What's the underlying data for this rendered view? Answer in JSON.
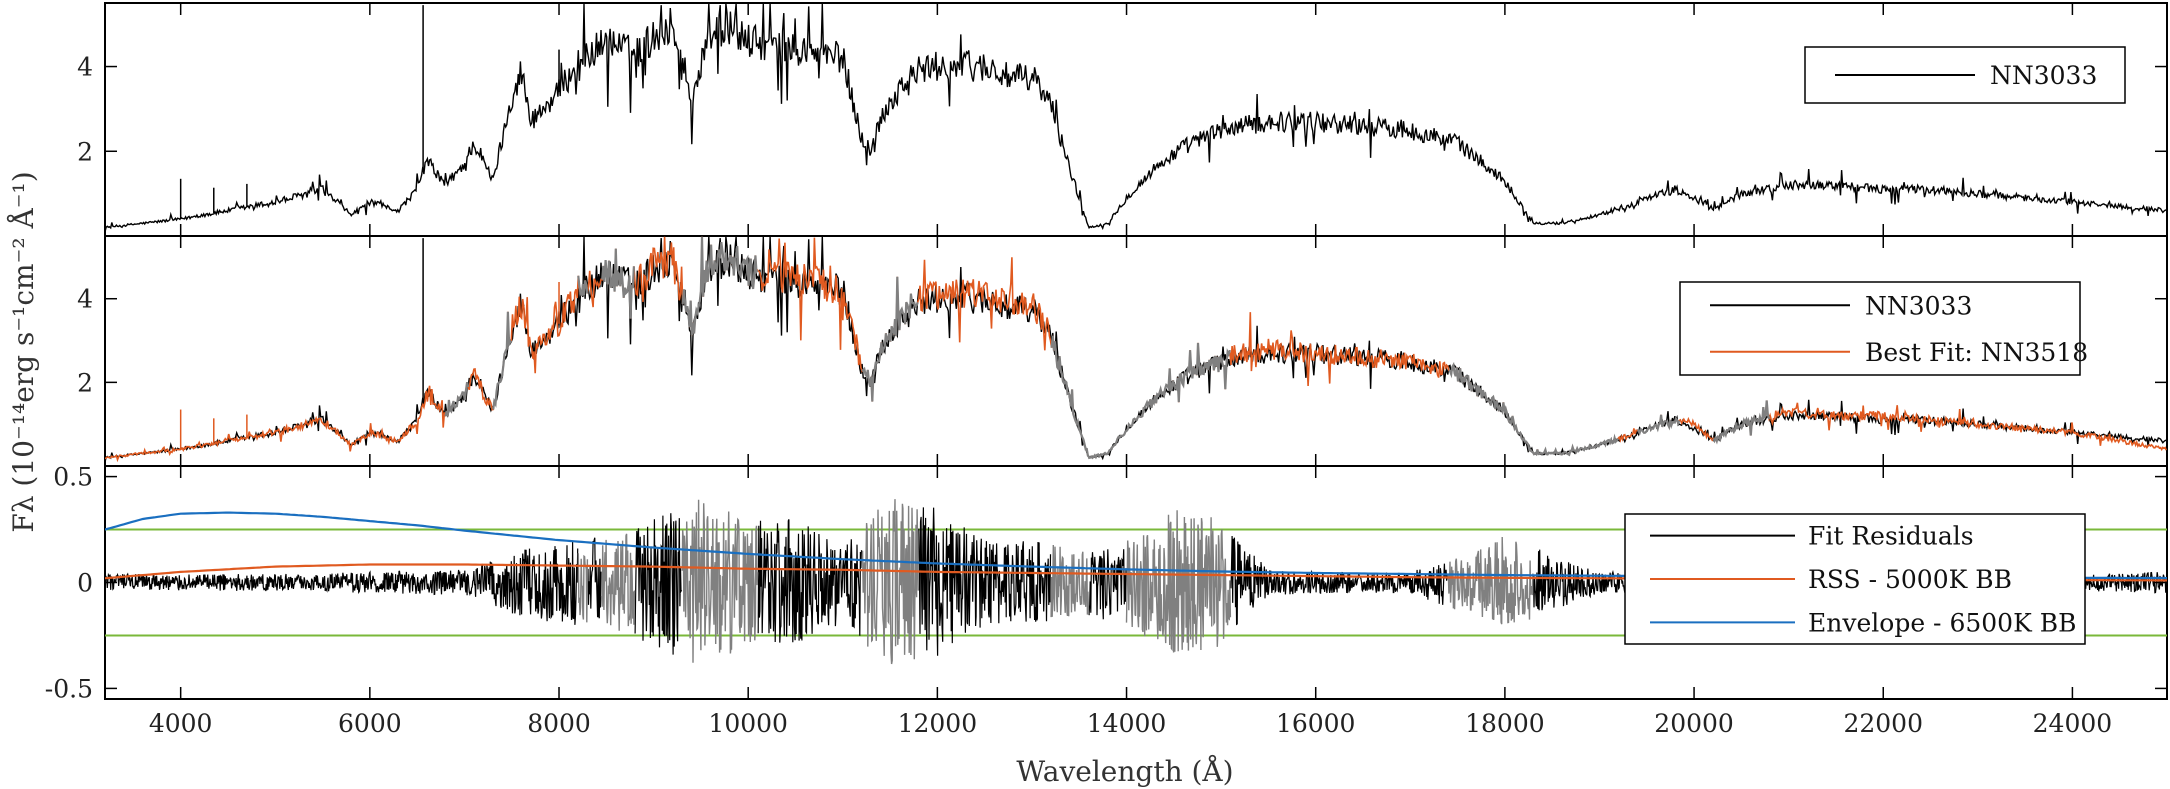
{
  "chart_data": [
    {
      "panel": "top",
      "type": "line",
      "xlim": [
        3200,
        25000
      ],
      "ylim": [
        0,
        5.5
      ],
      "yticks": [
        "2",
        "4"
      ],
      "grid": false,
      "legend": {
        "placement": "top-right",
        "entries": [
          {
            "label": "NN3033",
            "color": "#000000"
          }
        ]
      },
      "series": [
        {
          "name": "NN3033",
          "color": "#000000",
          "x": [
            3200,
            3600,
            4000,
            4500,
            5000,
            5500,
            5800,
            6000,
            6300,
            6500,
            6600,
            6800,
            7000,
            7100,
            7300,
            7500,
            7600,
            7700,
            8000,
            8200,
            8500,
            8800,
            9000,
            9200,
            9300,
            9400,
            9600,
            9800,
            10000,
            10200,
            10500,
            10800,
            11000,
            11200,
            11300,
            11400,
            11600,
            11800,
            12000,
            12500,
            12800,
            13000,
            13200,
            13400,
            13600,
            13800,
            14000,
            14300,
            14600,
            15000,
            15500,
            16000,
            16500,
            17000,
            17500,
            18000,
            18300,
            18600,
            19000,
            19400,
            19800,
            20000,
            20200,
            20500,
            21000,
            21500,
            22000,
            22500,
            23000,
            23500,
            24000,
            24500,
            25000
          ],
          "y": [
            0.2,
            0.3,
            0.4,
            0.6,
            0.8,
            1.1,
            0.5,
            0.8,
            0.6,
            1.1,
            1.8,
            1.2,
            1.7,
            2.2,
            1.3,
            3.3,
            3.9,
            2.7,
            3.4,
            4.1,
            4.6,
            4.3,
            4.7,
            5.0,
            4.0,
            3.2,
            4.8,
            4.9,
            4.6,
            4.5,
            4.4,
            4.3,
            4.2,
            2.3,
            2.0,
            2.8,
            3.5,
            3.9,
            4.0,
            4.0,
            3.7,
            3.8,
            3.1,
            1.6,
            0.2,
            0.3,
            0.9,
            1.6,
            2.1,
            2.5,
            2.7,
            2.7,
            2.6,
            2.5,
            2.2,
            1.3,
            0.3,
            0.3,
            0.5,
            0.8,
            1.1,
            0.9,
            0.6,
            1.0,
            1.2,
            1.2,
            1.1,
            1.1,
            1.0,
            0.9,
            0.8,
            0.7,
            0.6
          ]
        }
      ]
    },
    {
      "panel": "middle",
      "type": "line",
      "xlim": [
        3200,
        25000
      ],
      "ylim": [
        0,
        5.5
      ],
      "yticks": [
        "2",
        "4"
      ],
      "grid": false,
      "legend": {
        "placement": "top-right",
        "entries": [
          {
            "label": "NN3033",
            "color": "#000000"
          },
          {
            "label": "Best Fit: NN3518",
            "color": "#e05a20"
          }
        ]
      },
      "series": [
        {
          "name": "NN3033",
          "color": "#000000",
          "x": [
            3200,
            3600,
            4000,
            4500,
            5000,
            5500,
            5800,
            6000,
            6300,
            6500,
            6600,
            6800,
            7000,
            7100,
            7300,
            7500,
            7600,
            7700,
            8000,
            8200,
            8500,
            8800,
            9000,
            9200,
            9300,
            9400,
            9600,
            9800,
            10000,
            10200,
            10500,
            10800,
            11000,
            11200,
            11300,
            11400,
            11600,
            11800,
            12000,
            12500,
            12800,
            13000,
            13200,
            13400,
            13600,
            13800,
            14000,
            14300,
            14600,
            15000,
            15500,
            16000,
            16500,
            17000,
            17500,
            18000,
            18300,
            18600,
            19000,
            19400,
            19800,
            20000,
            20200,
            20500,
            21000,
            21500,
            22000,
            22500,
            23000,
            23500,
            24000,
            24500,
            25000
          ],
          "y": [
            0.2,
            0.3,
            0.4,
            0.6,
            0.8,
            1.1,
            0.5,
            0.8,
            0.6,
            1.1,
            1.8,
            1.2,
            1.7,
            2.2,
            1.3,
            3.3,
            3.9,
            2.7,
            3.4,
            4.1,
            4.6,
            4.3,
            4.7,
            5.0,
            4.0,
            3.2,
            4.8,
            4.9,
            4.6,
            4.5,
            4.4,
            4.3,
            4.2,
            2.3,
            2.0,
            2.8,
            3.5,
            3.9,
            4.0,
            4.0,
            3.7,
            3.8,
            3.1,
            1.6,
            0.2,
            0.3,
            0.9,
            1.6,
            2.1,
            2.5,
            2.7,
            2.7,
            2.6,
            2.5,
            2.2,
            1.3,
            0.3,
            0.3,
            0.5,
            0.8,
            1.1,
            0.9,
            0.6,
            1.0,
            1.2,
            1.2,
            1.1,
            1.1,
            1.0,
            0.9,
            0.8,
            0.7,
            0.6
          ]
        },
        {
          "name": "Best Fit: NN3518",
          "color": "#e05a20",
          "x": [
            3200,
            3600,
            4000,
            4500,
            5000,
            5500,
            5800,
            6000,
            6300,
            6500,
            6600,
            6800,
            7000,
            7100,
            7300,
            7500,
            7600,
            7700,
            8000,
            8200,
            8500,
            8800,
            9000,
            9200,
            9300,
            9400,
            9600,
            9800,
            10000,
            10200,
            10500,
            10800,
            11000,
            11200,
            11300,
            11400,
            11600,
            11800,
            12000,
            12500,
            12800,
            13000,
            13200,
            13400,
            13600,
            13800,
            14000,
            14300,
            14600,
            15000,
            15500,
            16000,
            16500,
            17000,
            17500,
            18000,
            18300,
            18600,
            19000,
            19400,
            19800,
            20000,
            20200,
            20500,
            21000,
            21500,
            22000,
            22500,
            23000,
            23500,
            24000,
            24500,
            25000
          ],
          "y": [
            0.2,
            0.3,
            0.4,
            0.6,
            0.8,
            1.1,
            0.5,
            0.8,
            0.6,
            1.1,
            1.7,
            1.2,
            1.7,
            2.2,
            1.3,
            3.3,
            3.9,
            2.7,
            3.4,
            4.2,
            4.6,
            4.3,
            4.8,
            5.0,
            4.1,
            3.2,
            4.9,
            5.0,
            4.7,
            4.5,
            4.5,
            4.3,
            4.2,
            2.3,
            2.0,
            2.8,
            3.5,
            4.0,
            4.1,
            4.1,
            3.8,
            3.9,
            3.1,
            1.6,
            0.2,
            0.3,
            0.9,
            1.6,
            2.1,
            2.6,
            2.8,
            2.7,
            2.6,
            2.5,
            2.2,
            1.3,
            0.3,
            0.3,
            0.5,
            0.8,
            1.1,
            1.0,
            0.6,
            1.0,
            1.3,
            1.2,
            1.2,
            1.1,
            1.0,
            0.9,
            0.8,
            0.6,
            0.4
          ]
        }
      ],
      "masked_regions_color": "#808080",
      "masked_regions_x": [
        [
          6800,
          7050
        ],
        [
          7300,
          7500
        ],
        [
          8200,
          8300
        ],
        [
          8450,
          8800
        ],
        [
          9300,
          10100
        ],
        [
          11200,
          11800
        ],
        [
          13200,
          15100
        ],
        [
          17400,
          19200
        ],
        [
          19400,
          19850
        ],
        [
          20200,
          20800
        ]
      ]
    },
    {
      "panel": "bottom",
      "type": "line",
      "xlim": [
        3200,
        25000
      ],
      "ylim": [
        -0.55,
        0.55
      ],
      "yticks": [
        "0.5",
        "0",
        "-0.5"
      ],
      "xticks": [
        "4000",
        "6000",
        "8000",
        "10000",
        "12000",
        "14000",
        "16000",
        "18000",
        "20000",
        "22000",
        "24000"
      ],
      "xlabel": "Wavelength (Å)",
      "grid": false,
      "legend": {
        "placement": "right",
        "entries": [
          {
            "label": "Fit Residuals",
            "color": "#000000"
          },
          {
            "label": "RSS - 5000K BB",
            "color": "#e05a20"
          },
          {
            "label": "Envelope - 6500K BB",
            "color": "#1a6fc0"
          }
        ]
      },
      "reference_lines": {
        "color": "#7ab83a",
        "y": [
          0.25,
          -0.25
        ]
      },
      "residual_noise": {
        "x": [
          3200,
          4000,
          5000,
          6000,
          7000,
          7500,
          8000,
          8500,
          9000,
          9500,
          10000,
          10500,
          11000,
          11500,
          12000,
          12500,
          13000,
          13500,
          14000,
          14500,
          15000,
          15500,
          16000,
          17000,
          18000,
          19000,
          20000,
          21000,
          22000,
          23000,
          24000,
          25000
        ],
        "amplitude": [
          0.04,
          0.04,
          0.04,
          0.05,
          0.06,
          0.15,
          0.2,
          0.22,
          0.3,
          0.4,
          0.3,
          0.3,
          0.2,
          0.4,
          0.35,
          0.2,
          0.2,
          0.15,
          0.2,
          0.35,
          0.3,
          0.06,
          0.05,
          0.05,
          0.22,
          0.05,
          0.05,
          0.04,
          0.04,
          0.04,
          0.04,
          0.05
        ]
      },
      "masked_regions_color": "#808080",
      "masked_regions_x": [
        [
          8200,
          8300
        ],
        [
          8450,
          8800
        ],
        [
          9300,
          10100
        ],
        [
          11200,
          11800
        ],
        [
          13200,
          13600
        ],
        [
          14000,
          15100
        ],
        [
          17400,
          18300
        ]
      ],
      "series": [
        {
          "name": "RSS - 5000K BB",
          "color": "#e05a20",
          "x": [
            3200,
            4000,
            5000,
            6000,
            7000,
            8000,
            9000,
            10000,
            11000,
            12000,
            13000,
            14000,
            15000,
            16000,
            17000,
            18000,
            19000,
            20000,
            21000,
            22000,
            23000,
            24000,
            25000
          ],
          "y": [
            0.02,
            0.05,
            0.075,
            0.085,
            0.085,
            0.08,
            0.075,
            0.065,
            0.06,
            0.05,
            0.045,
            0.04,
            0.035,
            0.03,
            0.025,
            0.022,
            0.02,
            0.018,
            0.016,
            0.014,
            0.012,
            0.011,
            0.01
          ]
        },
        {
          "name": "Envelope - 6500K BB",
          "color": "#1a6fc0",
          "x": [
            3200,
            3600,
            4000,
            4500,
            5000,
            5500,
            6000,
            6500,
            7000,
            8000,
            9000,
            10000,
            11000,
            12000,
            13000,
            14000,
            15000,
            16000,
            17000,
            18000,
            19000,
            20000,
            21000,
            22000,
            23000,
            24000,
            25000
          ],
          "y": [
            0.25,
            0.3,
            0.325,
            0.33,
            0.325,
            0.31,
            0.29,
            0.27,
            0.245,
            0.2,
            0.165,
            0.135,
            0.11,
            0.09,
            0.075,
            0.062,
            0.052,
            0.045,
            0.04,
            0.035,
            0.032,
            0.029,
            0.027,
            0.025,
            0.023,
            0.022,
            0.021
          ]
        }
      ]
    }
  ],
  "ylabel": "Fλ (10⁻¹⁴erg s⁻¹cm⁻² Å⁻¹)"
}
